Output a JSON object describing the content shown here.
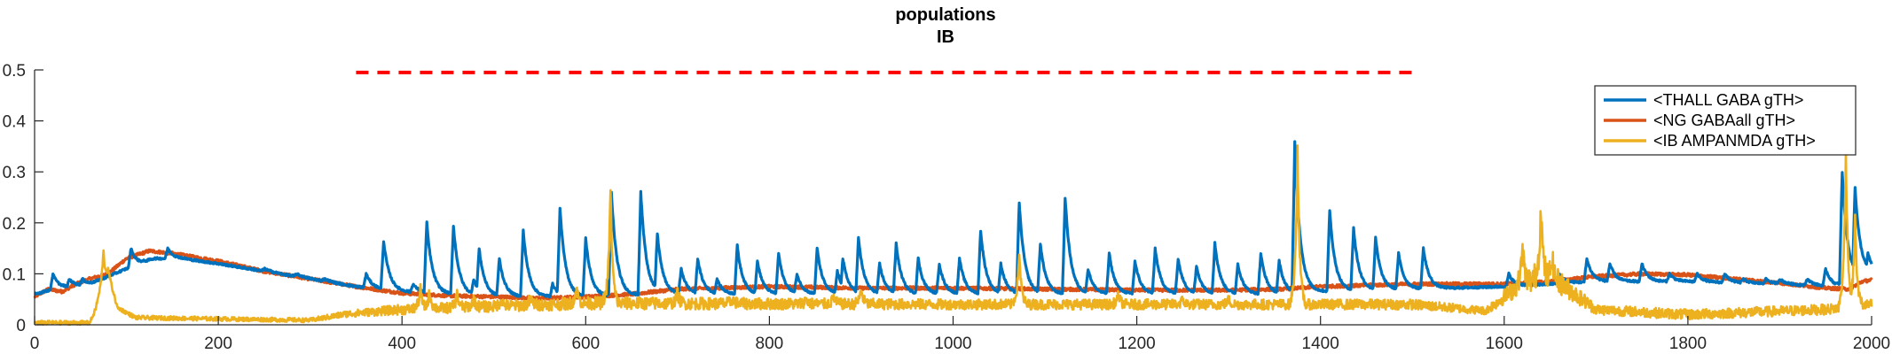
{
  "chart_data": {
    "type": "line",
    "title": "populations",
    "subtitle": "IB",
    "xlabel": "",
    "ylabel": "",
    "xlim": [
      0,
      2000
    ],
    "ylim": [
      0,
      0.5
    ],
    "x_ticks": [
      "0",
      "200",
      "400",
      "600",
      "800",
      "1000",
      "1200",
      "1400",
      "1600",
      "1800",
      "2000"
    ],
    "y_ticks": [
      "0",
      "0.1",
      "0.2",
      "0.3",
      "0.4",
      "0.5"
    ],
    "y_tick_values": [
      0,
      0.1,
      0.2,
      0.3,
      0.4,
      0.5
    ],
    "x_tick_values": [
      0,
      200,
      400,
      600,
      800,
      1000,
      1200,
      1400,
      1600,
      1800,
      2000
    ],
    "grid": false,
    "legend_position": "top-right",
    "stimulus_marker": {
      "style": "dashed",
      "color": "#ff0000",
      "x_start": 350,
      "x_end": 1500,
      "y": 0.495
    },
    "series": [
      {
        "name": "<THALL GABA gTH>",
        "color": "#0072bd",
        "baseline": [
          [
            0,
            0.06
          ],
          [
            20,
            0.07
          ],
          [
            60,
            0.08
          ],
          [
            100,
            0.11
          ],
          [
            130,
            0.13
          ],
          [
            160,
            0.13
          ],
          [
            200,
            0.12
          ],
          [
            250,
            0.105
          ],
          [
            300,
            0.09
          ],
          [
            350,
            0.075
          ],
          [
            400,
            0.065
          ],
          [
            450,
            0.06
          ],
          [
            500,
            0.055
          ],
          [
            600,
            0.055
          ],
          [
            700,
            0.06
          ],
          [
            800,
            0.06
          ],
          [
            900,
            0.06
          ],
          [
            1000,
            0.06
          ],
          [
            1100,
            0.06
          ],
          [
            1200,
            0.06
          ],
          [
            1300,
            0.06
          ],
          [
            1360,
            0.06
          ],
          [
            1400,
            0.065
          ],
          [
            1500,
            0.07
          ],
          [
            1600,
            0.075
          ],
          [
            1700,
            0.085
          ],
          [
            1800,
            0.085
          ],
          [
            1900,
            0.08
          ],
          [
            1960,
            0.075
          ],
          [
            2000,
            0.1
          ]
        ],
        "spikes": [
          [
            20,
            0.1
          ],
          [
            38,
            0.09
          ],
          [
            52,
            0.09
          ],
          [
            74,
            0.09
          ],
          [
            84,
            0.08
          ],
          [
            105,
            0.15
          ],
          [
            145,
            0.15
          ],
          [
            250,
            0.11
          ],
          [
            285,
            0.1
          ],
          [
            315,
            0.09
          ],
          [
            361,
            0.1
          ],
          [
            380,
            0.165
          ],
          [
            412,
            0.08
          ],
          [
            427,
            0.2
          ],
          [
            456,
            0.195
          ],
          [
            478,
            0.09
          ],
          [
            484,
            0.15
          ],
          [
            506,
            0.13
          ],
          [
            532,
            0.185
          ],
          [
            564,
            0.08
          ],
          [
            572,
            0.23
          ],
          [
            600,
            0.17
          ],
          [
            628,
            0.26
          ],
          [
            660,
            0.26
          ],
          [
            678,
            0.18
          ],
          [
            704,
            0.11
          ],
          [
            722,
            0.13
          ],
          [
            743,
            0.09
          ],
          [
            765,
            0.155
          ],
          [
            787,
            0.125
          ],
          [
            810,
            0.14
          ],
          [
            830,
            0.1
          ],
          [
            852,
            0.15
          ],
          [
            874,
            0.105
          ],
          [
            880,
            0.13
          ],
          [
            897,
            0.17
          ],
          [
            920,
            0.12
          ],
          [
            938,
            0.16
          ],
          [
            962,
            0.13
          ],
          [
            985,
            0.12
          ],
          [
            1007,
            0.13
          ],
          [
            1030,
            0.185
          ],
          [
            1052,
            0.12
          ],
          [
            1072,
            0.24
          ],
          [
            1095,
            0.16
          ],
          [
            1122,
            0.25
          ],
          [
            1147,
            0.11
          ],
          [
            1170,
            0.14
          ],
          [
            1198,
            0.125
          ],
          [
            1220,
            0.15
          ],
          [
            1245,
            0.13
          ],
          [
            1265,
            0.115
          ],
          [
            1285,
            0.16
          ],
          [
            1310,
            0.12
          ],
          [
            1335,
            0.14
          ],
          [
            1355,
            0.125
          ],
          [
            1372,
            0.36
          ],
          [
            1384,
            0.1
          ],
          [
            1410,
            0.225
          ],
          [
            1436,
            0.19
          ],
          [
            1460,
            0.17
          ],
          [
            1485,
            0.14
          ],
          [
            1512,
            0.15
          ],
          [
            1605,
            0.1
          ],
          [
            1660,
            0.1
          ],
          [
            1690,
            0.13
          ],
          [
            1715,
            0.12
          ],
          [
            1750,
            0.12
          ],
          [
            1780,
            0.1
          ],
          [
            1810,
            0.1
          ],
          [
            1840,
            0.1
          ],
          [
            1860,
            0.09
          ],
          [
            1885,
            0.09
          ],
          [
            1900,
            0.09
          ],
          [
            1930,
            0.09
          ],
          [
            1950,
            0.11
          ],
          [
            1968,
            0.3
          ],
          [
            1982,
            0.27
          ],
          [
            1996,
            0.14
          ]
        ]
      },
      {
        "name": "<NG GABAall gTH>",
        "color": "#d95319",
        "values": [
          [
            0,
            0.055
          ],
          [
            15,
            0.07
          ],
          [
            30,
            0.065
          ],
          [
            45,
            0.08
          ],
          [
            60,
            0.09
          ],
          [
            80,
            0.1
          ],
          [
            100,
            0.13
          ],
          [
            125,
            0.145
          ],
          [
            150,
            0.14
          ],
          [
            200,
            0.125
          ],
          [
            250,
            0.105
          ],
          [
            300,
            0.09
          ],
          [
            350,
            0.075
          ],
          [
            400,
            0.062
          ],
          [
            450,
            0.057
          ],
          [
            500,
            0.055
          ],
          [
            550,
            0.052
          ],
          [
            600,
            0.055
          ],
          [
            650,
            0.06
          ],
          [
            700,
            0.07
          ],
          [
            800,
            0.075
          ],
          [
            900,
            0.072
          ],
          [
            1000,
            0.072
          ],
          [
            1100,
            0.07
          ],
          [
            1200,
            0.068
          ],
          [
            1300,
            0.068
          ],
          [
            1360,
            0.07
          ],
          [
            1400,
            0.075
          ],
          [
            1500,
            0.08
          ],
          [
            1560,
            0.08
          ],
          [
            1600,
            0.08
          ],
          [
            1650,
            0.085
          ],
          [
            1700,
            0.095
          ],
          [
            1750,
            0.1
          ],
          [
            1800,
            0.098
          ],
          [
            1850,
            0.09
          ],
          [
            1900,
            0.082
          ],
          [
            1950,
            0.072
          ],
          [
            1975,
            0.07
          ],
          [
            1990,
            0.085
          ],
          [
            2000,
            0.088
          ]
        ]
      },
      {
        "name": "<IB AMPANMDA gTH>",
        "color": "#edb120",
        "baseline": [
          [
            0,
            0.0
          ],
          [
            60,
            0.0
          ],
          [
            65,
            0.02
          ],
          [
            80,
            0.1
          ],
          [
            90,
            0.03
          ],
          [
            110,
            0.01
          ],
          [
            300,
            0.005
          ],
          [
            340,
            0.015
          ],
          [
            400,
            0.02
          ],
          [
            500,
            0.025
          ],
          [
            600,
            0.03
          ],
          [
            800,
            0.03
          ],
          [
            1000,
            0.03
          ],
          [
            1200,
            0.03
          ],
          [
            1360,
            0.03
          ],
          [
            1400,
            0.03
          ],
          [
            1500,
            0.03
          ],
          [
            1580,
            0.02
          ],
          [
            1620,
            0.06
          ],
          [
            1660,
            0.06
          ],
          [
            1700,
            0.02
          ],
          [
            1800,
            0.01
          ],
          [
            1950,
            0.02
          ],
          [
            2000,
            0.03
          ]
        ],
        "noise": [
          [
            300,
            0.008
          ],
          [
            400,
            0.02
          ],
          [
            600,
            0.025
          ],
          [
            1000,
            0.02
          ],
          [
            1360,
            0.02
          ],
          [
            1500,
            0.02
          ],
          [
            1580,
            0.015
          ],
          [
            1640,
            0.06
          ],
          [
            1700,
            0.02
          ],
          [
            1950,
            0.02
          ],
          [
            2000,
            0.02
          ]
        ],
        "spikes": [
          [
            75,
            0.14
          ],
          [
            420,
            0.06
          ],
          [
            430,
            0.055
          ],
          [
            460,
            0.05
          ],
          [
            478,
            0.04
          ],
          [
            508,
            0.04
          ],
          [
            540,
            0.04
          ],
          [
            590,
            0.06
          ],
          [
            627,
            0.255
          ],
          [
            700,
            0.05
          ],
          [
            760,
            0.04
          ],
          [
            840,
            0.04
          ],
          [
            870,
            0.045
          ],
          [
            900,
            0.06
          ],
          [
            1072,
            0.135
          ],
          [
            1180,
            0.05
          ],
          [
            1250,
            0.04
          ],
          [
            1300,
            0.04
          ],
          [
            1375,
            0.34
          ],
          [
            1620,
            0.13
          ],
          [
            1640,
            0.21
          ],
          [
            1652,
            0.11
          ],
          [
            1972,
            0.335
          ],
          [
            1982,
            0.2
          ]
        ]
      }
    ]
  }
}
